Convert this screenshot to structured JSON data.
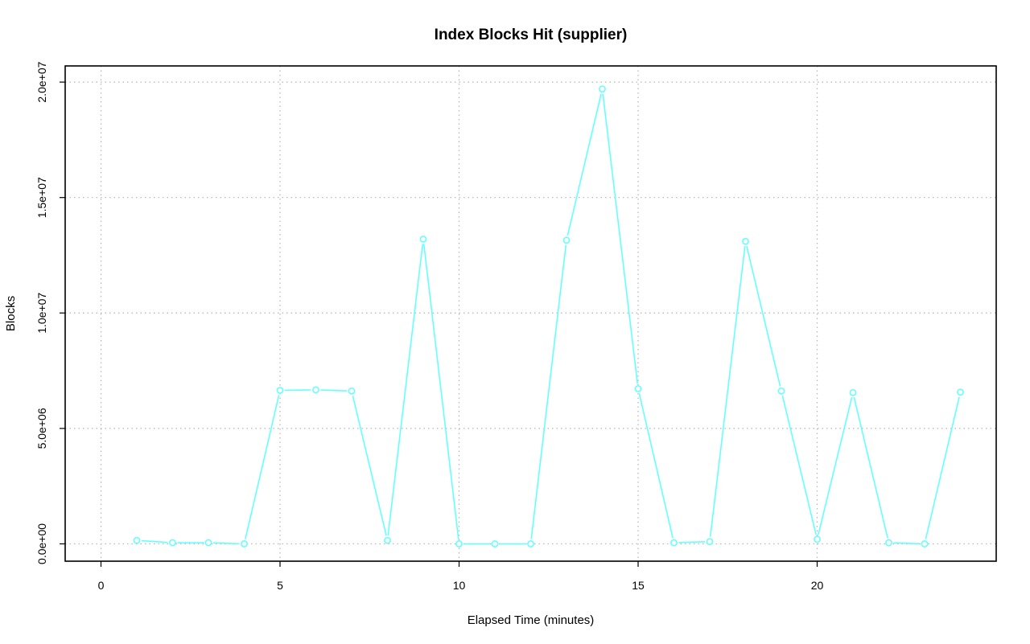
{
  "chart_data": {
    "type": "line",
    "title": "Index Blocks Hit (supplier)",
    "xlabel": "Elapsed Time (minutes)",
    "ylabel": "Blocks",
    "xlim": [
      -1,
      25
    ],
    "ylim": [
      -750000,
      20700000
    ],
    "x_ticks": [
      0,
      5,
      10,
      15,
      20
    ],
    "x_tick_labels": [
      "0",
      "5",
      "10",
      "15",
      "20"
    ],
    "y_ticks": [
      0,
      5000000,
      10000000,
      15000000,
      20000000
    ],
    "y_tick_labels": [
      "0.0e+00",
      "5.0e+06",
      "1.0e+07",
      "1.5e+07",
      "2.0e+07"
    ],
    "grid": true,
    "colors": {
      "series": "#66ffff",
      "grid": "#b4b4b4",
      "frame": "#000000"
    },
    "series": [
      {
        "x": [
          1,
          2,
          3,
          4,
          5,
          6,
          7,
          8,
          9,
          10,
          11,
          12,
          13,
          14,
          15,
          16,
          17,
          18,
          19,
          20,
          21,
          22,
          23,
          24
        ],
        "values": [
          150000,
          50000,
          50000,
          0,
          6650000,
          6670000,
          6620000,
          150000,
          13200000,
          0,
          0,
          0,
          13150000,
          19700000,
          6720000,
          50000,
          100000,
          13100000,
          6620000,
          200000,
          6550000,
          50000,
          0,
          6570000
        ]
      }
    ]
  }
}
